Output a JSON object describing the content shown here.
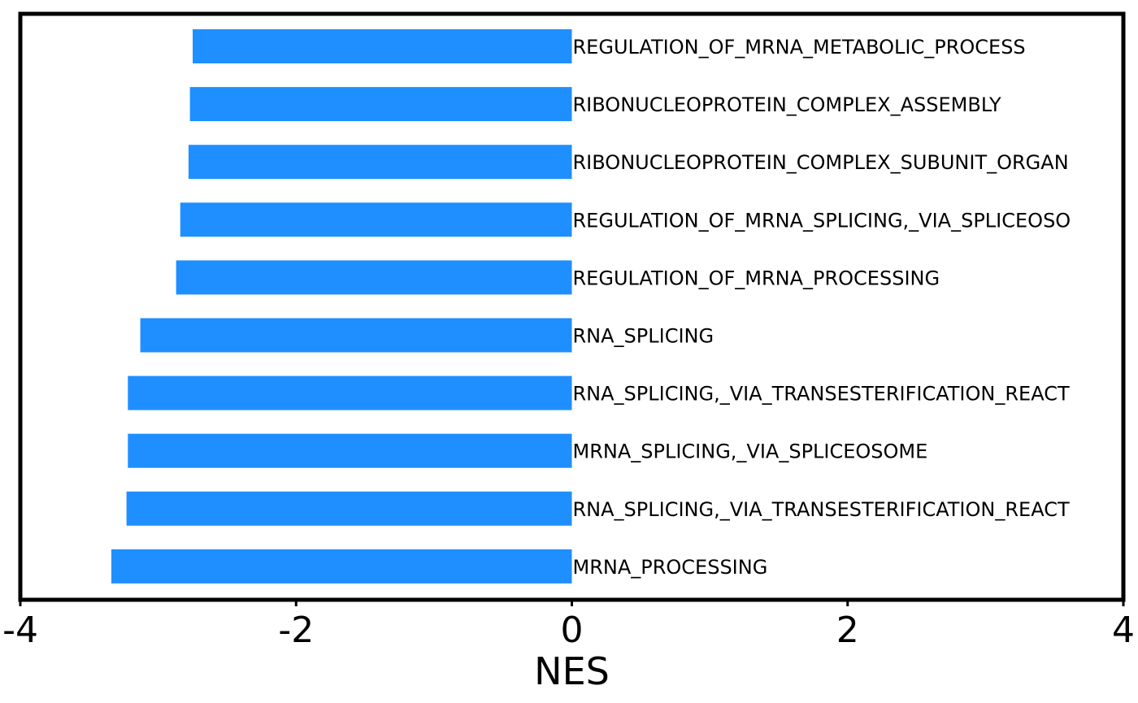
{
  "chart_data": {
    "type": "bar",
    "orientation": "horizontal",
    "categories": [
      "REGULATION_OF_MRNA_METABOLIC_PROCESS",
      "RIBONUCLEOPROTEIN_COMPLEX_ASSEMBLY",
      "RIBONUCLEOPROTEIN_COMPLEX_SUBUNIT_ORGAN",
      "REGULATION_OF_MRNA_SPLICING,_VIA_SPLICEOSO",
      "REGULATION_OF_MRNA_PROCESSING",
      "RNA_SPLICING",
      "RNA_SPLICING,_VIA_TRANSESTERIFICATION_REACT",
      "MRNA_SPLICING,_VIA_SPLICEOSOME",
      "RNA_SPLICING,_VIA_TRANSESTERIFICATION_REACT",
      "MRNA_PROCESSING"
    ],
    "values": [
      -2.75,
      -2.77,
      -2.78,
      -2.84,
      -2.87,
      -3.13,
      -3.22,
      -3.22,
      -3.23,
      -3.34
    ],
    "xlabel": "NES",
    "ylabel": "",
    "title": "",
    "xlim": [
      -4,
      4
    ],
    "xticks": [
      -4,
      -2,
      0,
      2,
      4
    ],
    "xtick_labels": [
      "-4",
      "-2",
      "0",
      "2",
      "4"
    ],
    "grid": false,
    "legend": "none",
    "bar_color": "#1f8fff",
    "frame_color": "#000000"
  }
}
